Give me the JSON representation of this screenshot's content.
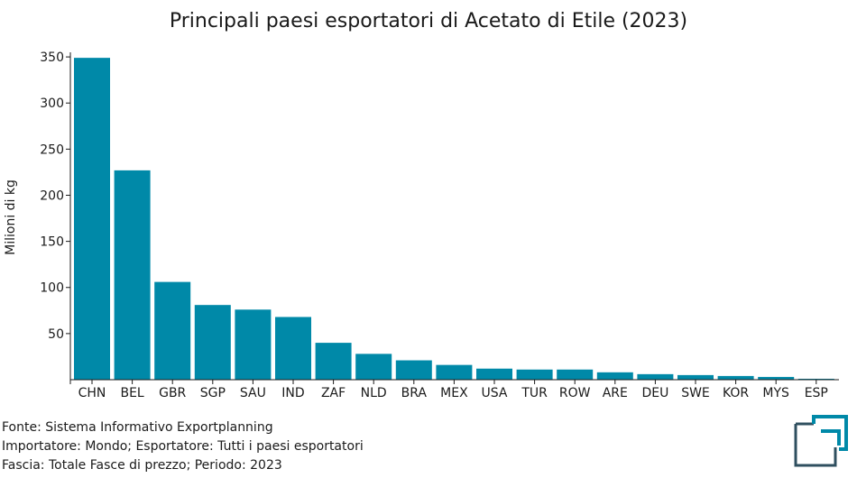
{
  "chart_data": {
    "type": "bar",
    "title": "Principali paesi esportatori di Acetato di Etile (2023)",
    "xlabel": "",
    "ylabel": "Milioni di kg",
    "categories": [
      "CHN",
      "BEL",
      "GBR",
      "SGP",
      "SAU",
      "IND",
      "ZAF",
      "NLD",
      "BRA",
      "MEX",
      "USA",
      "TUR",
      "ROW",
      "ARE",
      "DEU",
      "SWE",
      "KOR",
      "MYS",
      "ESP"
    ],
    "values": [
      349,
      227,
      106,
      81,
      76,
      68,
      40,
      28,
      21,
      16,
      12,
      11,
      11,
      8,
      6,
      5,
      4,
      3,
      1
    ],
    "yticks": [
      50,
      100,
      150,
      200,
      250,
      300,
      350
    ],
    "ylim": [
      0,
      355
    ],
    "grid": false,
    "bar_color": "#0089a8"
  },
  "footer": {
    "fonte": "Fonte: Sistema Informativo Exportplanning",
    "importatore": "Importatore: Mondo; Esportatore: Tutti i paesi esportatori",
    "fascia": "Fascia: Totale Fasce di prezzo; Periodo: 2023"
  },
  "logo": {
    "icon": "exportplanning-logo-icon",
    "color": "#0089a8"
  }
}
